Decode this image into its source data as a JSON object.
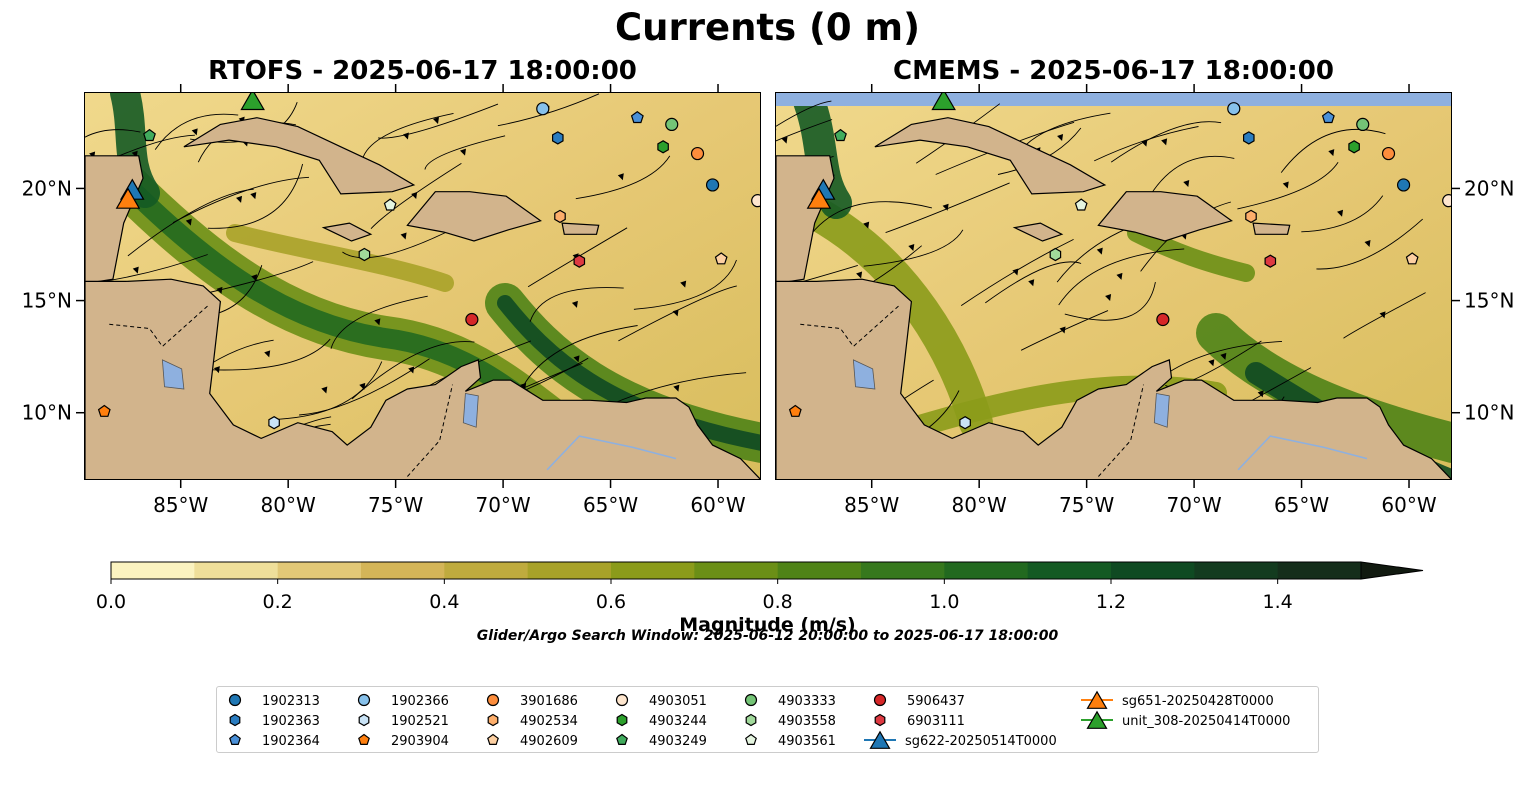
{
  "figure": {
    "title": "Currents (0 m)",
    "left_panel_title": "RTOFS - 2025-06-17 18:00:00",
    "right_panel_title": "CMEMS - 2025-06-17 18:00:00",
    "lon_ticks": [
      "85°W",
      "80°W",
      "75°W",
      "70°W",
      "65°W",
      "60°W"
    ],
    "lat_ticks": [
      "20°N",
      "15°N",
      "10°N"
    ],
    "colorbar_ticks": [
      "0.0",
      "0.2",
      "0.4",
      "0.6",
      "0.8",
      "1.0",
      "1.2",
      "1.4"
    ],
    "colorbar_label": "Magnitude (m/s)",
    "search_window": "Glider/Argo Search Window: 2025-06-12 20:00:00 to 2025-06-17 18:00:00"
  },
  "map": {
    "lon_range": [
      -89.5,
      -58
    ],
    "lat_range": [
      7,
      24.3
    ],
    "colorbar_range": [
      0,
      1.5
    ],
    "colorbar_colors": [
      "#fbf3c0",
      "#efdf9a",
      "#e2c877",
      "#d4b558",
      "#bfab3e",
      "#a8a229",
      "#8b9b1a",
      "#6b8f16",
      "#4f8317",
      "#36781d",
      "#22691f",
      "#145a23",
      "#0f4a22",
      "#133b1f",
      "#152e1b"
    ],
    "colors": {
      "land": "#d2b48c",
      "lake": "#8eb0df",
      "ocean_low": "#f4e4a4",
      "ocean_high": "#2a7a28"
    }
  },
  "legend": {
    "columns": [
      [
        {
          "label": "1902313",
          "marker": "circle",
          "color": "#1f77b4"
        },
        {
          "label": "1902363",
          "marker": "hexagon",
          "color": "#2a7cc0"
        },
        {
          "label": "1902364",
          "marker": "pentagon",
          "color": "#4a90d8"
        }
      ],
      [
        {
          "label": "1902366",
          "marker": "circle",
          "color": "#87c1eb"
        },
        {
          "label": "1902521",
          "marker": "hexagon",
          "color": "#c9e3f6"
        },
        {
          "label": "2903904",
          "marker": "pentagon",
          "color": "#ff7f0e"
        }
      ],
      [
        {
          "label": "3901686",
          "marker": "circle",
          "color": "#fd8d3c"
        },
        {
          "label": "4902534",
          "marker": "hexagon",
          "color": "#fdae6b"
        },
        {
          "label": "4902609",
          "marker": "pentagon",
          "color": "#fdd0a2"
        }
      ],
      [
        {
          "label": "4903051",
          "marker": "circle",
          "color": "#fee6ce"
        },
        {
          "label": "4903244",
          "marker": "hexagon",
          "color": "#2ca02c"
        },
        {
          "label": "4903249",
          "marker": "pentagon",
          "color": "#41ab5d"
        }
      ],
      [
        {
          "label": "4903333",
          "marker": "circle",
          "color": "#74c476"
        },
        {
          "label": "4903558",
          "marker": "hexagon",
          "color": "#a1d99b"
        },
        {
          "label": "4903561",
          "marker": "pentagon",
          "color": "#e5f5e0"
        }
      ],
      [
        {
          "label": "5906437",
          "marker": "circle",
          "color": "#d62728"
        },
        {
          "label": "6903111",
          "marker": "hexagon",
          "color": "#de3a42"
        },
        {
          "label": "sg622-20250514T0000",
          "marker": "triangle",
          "color": "#1f77b4"
        }
      ],
      [
        {
          "label": "sg651-20250428T0000",
          "marker": "triangle",
          "color": "#ff7f0e"
        },
        {
          "label": "unit_308-20250414T0000",
          "marker": "triangle",
          "color": "#2ca02c"
        }
      ]
    ]
  },
  "platforms_rtofs": [
    {
      "id": "1902313",
      "lon": -60.3,
      "lat": 20.2
    },
    {
      "id": "1902363",
      "lon": -67.5,
      "lat": 22.3
    },
    {
      "id": "1902364",
      "lon": -63.8,
      "lat": 23.2
    },
    {
      "id": "1902366",
      "lon": -68.2,
      "lat": 23.6
    },
    {
      "id": "1902521",
      "lon": -80.7,
      "lat": 9.6
    },
    {
      "id": "2903904",
      "lon": -88.6,
      "lat": 10.1
    },
    {
      "id": "3901686",
      "lon": -61.0,
      "lat": 21.6
    },
    {
      "id": "4902534",
      "lon": -67.4,
      "lat": 18.8
    },
    {
      "id": "4902609",
      "lon": -59.9,
      "lat": 16.9
    },
    {
      "id": "4903051",
      "lon": -58.2,
      "lat": 19.5
    },
    {
      "id": "4903244",
      "lon": -62.6,
      "lat": 21.9
    },
    {
      "id": "4903249",
      "lon": -86.5,
      "lat": 22.4
    },
    {
      "id": "4903333",
      "lon": -62.2,
      "lat": 22.9
    },
    {
      "id": "4903558",
      "lon": -76.5,
      "lat": 17.1
    },
    {
      "id": "4903561",
      "lon": -75.3,
      "lat": 19.3
    },
    {
      "id": "5906437",
      "lon": -71.5,
      "lat": 14.2
    },
    {
      "id": "6903111",
      "lon": -66.5,
      "lat": 16.8
    },
    {
      "id": "sg622-20250514T0000",
      "lon": -87.3,
      "lat": 20.0
    },
    {
      "id": "sg651-20250428T0000",
      "lon": -87.5,
      "lat": 19.6
    },
    {
      "id": "unit_308-20250414T0000",
      "lon": -81.7,
      "lat": 24.0
    }
  ],
  "platforms_cmems": [
    {
      "id": "1902313",
      "lon": -60.3,
      "lat": 20.2
    },
    {
      "id": "1902363",
      "lon": -67.5,
      "lat": 22.3
    },
    {
      "id": "1902364",
      "lon": -63.8,
      "lat": 23.2
    },
    {
      "id": "1902366",
      "lon": -68.2,
      "lat": 23.6
    },
    {
      "id": "1902521",
      "lon": -80.7,
      "lat": 9.6
    },
    {
      "id": "2903904",
      "lon": -88.6,
      "lat": 10.1
    },
    {
      "id": "3901686",
      "lon": -61.0,
      "lat": 21.6
    },
    {
      "id": "4902534",
      "lon": -67.4,
      "lat": 18.8
    },
    {
      "id": "4902609",
      "lon": -59.9,
      "lat": 16.9
    },
    {
      "id": "4903051",
      "lon": -58.2,
      "lat": 19.5
    },
    {
      "id": "4903244",
      "lon": -62.6,
      "lat": 21.9
    },
    {
      "id": "4903249",
      "lon": -86.5,
      "lat": 22.4
    },
    {
      "id": "4903333",
      "lon": -62.2,
      "lat": 22.9
    },
    {
      "id": "4903558",
      "lon": -76.5,
      "lat": 17.1
    },
    {
      "id": "4903561",
      "lon": -75.3,
      "lat": 19.3
    },
    {
      "id": "5906437",
      "lon": -71.5,
      "lat": 14.2
    },
    {
      "id": "6903111",
      "lon": -66.5,
      "lat": 16.8
    },
    {
      "id": "sg622-20250514T0000",
      "lon": -87.3,
      "lat": 20.0
    },
    {
      "id": "sg651-20250428T0000",
      "lon": -87.5,
      "lat": 19.6
    },
    {
      "id": "unit_308-20250414T0000",
      "lon": -81.7,
      "lat": 24.0
    }
  ]
}
